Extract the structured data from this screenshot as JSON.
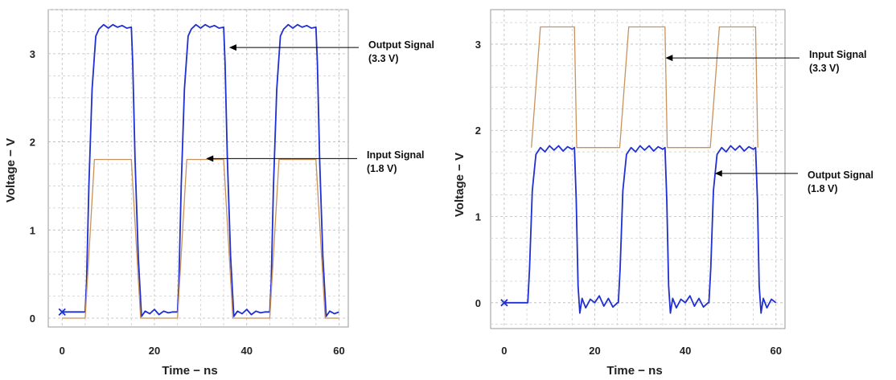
{
  "chart_data": [
    {
      "type": "line",
      "xlabel": "Time − ns",
      "ylabel": "Voltage − V",
      "xlim": [
        -3,
        62
      ],
      "ylim": [
        -0.1,
        3.5
      ],
      "xticks": [
        "0",
        "20",
        "40",
        "60"
      ],
      "xtick_values": [
        0,
        20,
        40,
        60
      ],
      "yticks": [
        "0",
        "1",
        "2",
        "3"
      ],
      "ytick_values": [
        0,
        1,
        2,
        3
      ],
      "grid": true,
      "series": [
        {
          "role": "output",
          "color": "#1f2fd0",
          "x": [
            0,
            5,
            5.3,
            5.8,
            6.5,
            7.3,
            8.0,
            9,
            10,
            11,
            12,
            13,
            14,
            15,
            15.3,
            15.8,
            16.5,
            17.2,
            18,
            19,
            20,
            21,
            22,
            23,
            24,
            25,
            25.3,
            25.8,
            26.5,
            27.3,
            28,
            29,
            30,
            31,
            32,
            33,
            34,
            35,
            35.3,
            35.8,
            36.5,
            37.2,
            38,
            39,
            40,
            41,
            42,
            43,
            44,
            45,
            45.3,
            45.8,
            46.5,
            47.3,
            48,
            49,
            50,
            51,
            52,
            53,
            54,
            55,
            55.3,
            55.8,
            56.5,
            57.2,
            58,
            59,
            60
          ],
          "y": [
            0.07,
            0.07,
            0.4,
            1.5,
            2.6,
            3.2,
            3.28,
            3.33,
            3.29,
            3.33,
            3.3,
            3.32,
            3.29,
            3.3,
            2.9,
            1.8,
            0.7,
            0.02,
            0.08,
            0.05,
            0.1,
            0.04,
            0.08,
            0.06,
            0.07,
            0.07,
            0.4,
            1.5,
            2.6,
            3.2,
            3.28,
            3.33,
            3.29,
            3.33,
            3.3,
            3.32,
            3.29,
            3.3,
            2.9,
            1.8,
            0.7,
            0.02,
            0.08,
            0.05,
            0.1,
            0.04,
            0.08,
            0.06,
            0.07,
            0.07,
            0.4,
            1.5,
            2.6,
            3.2,
            3.28,
            3.33,
            3.29,
            3.33,
            3.3,
            3.32,
            3.29,
            3.3,
            2.9,
            1.8,
            0.7,
            0.02,
            0.08,
            0.05,
            0.07
          ]
        },
        {
          "role": "input",
          "color": "#c9925a",
          "x": [
            0,
            5,
            7,
            15,
            17,
            25,
            27,
            35,
            37,
            45,
            47,
            55,
            57,
            60
          ],
          "y": [
            0,
            0,
            1.8,
            1.8,
            0,
            0,
            1.8,
            1.8,
            0,
            0,
            1.8,
            1.8,
            0,
            0
          ]
        }
      ],
      "annotations": [
        {
          "line1": "Output Signal",
          "line2": "(3.3 V)",
          "x": 36.2,
          "y": 3.07
        },
        {
          "line1": "Input Signal",
          "line2": "(1.8 V)",
          "x": 31.2,
          "y": 1.81
        }
      ]
    },
    {
      "type": "line",
      "xlabel": "Time − ns",
      "ylabel": "Voltage − V",
      "xlim": [
        -3,
        62
      ],
      "ylim": [
        -0.3,
        3.4
      ],
      "xticks": [
        "0",
        "20",
        "40",
        "60"
      ],
      "xtick_values": [
        0,
        20,
        40,
        60
      ],
      "yticks": [
        "0",
        "1",
        "2",
        "3"
      ],
      "ytick_values": [
        0,
        1,
        2,
        3
      ],
      "grid": true,
      "series": [
        {
          "role": "input",
          "color": "#c9925a",
          "x": [
            6,
            8,
            15.5,
            16,
            25.5,
            27.5,
            35.5,
            36,
            45.5,
            47.5,
            55.5,
            56
          ],
          "y": [
            1.8,
            3.2,
            3.2,
            1.8,
            1.8,
            3.2,
            3.2,
            1.8,
            1.8,
            3.2,
            3.2,
            1.8
          ]
        },
        {
          "role": "output",
          "color": "#1f2fd0",
          "x": [
            0,
            5.2,
            5.6,
            6.2,
            7,
            8,
            9,
            10,
            11,
            12,
            13,
            14,
            15,
            15.5,
            15.9,
            16.3,
            16.7,
            17.2,
            18,
            19,
            20,
            21,
            22,
            23,
            24,
            25,
            25.2,
            25.6,
            26.2,
            27,
            28,
            29,
            30,
            31,
            32,
            33,
            34,
            35,
            35.5,
            35.9,
            36.3,
            36.7,
            37.2,
            38,
            39,
            40,
            41,
            42,
            43,
            44,
            45,
            45.2,
            45.6,
            46.2,
            47,
            48,
            49,
            50,
            51,
            52,
            53,
            54,
            55,
            55.5,
            55.9,
            56.3,
            56.7,
            57.2,
            58,
            59,
            60
          ],
          "y": [
            0,
            0,
            0.4,
            1.3,
            1.72,
            1.8,
            1.75,
            1.82,
            1.77,
            1.82,
            1.76,
            1.81,
            1.78,
            1.8,
            1.2,
            0.2,
            -0.12,
            0.05,
            -0.06,
            0.04,
            0.0,
            0.08,
            -0.04,
            0.05,
            -0.05,
            0.0,
            0.0,
            0.4,
            1.3,
            1.72,
            1.8,
            1.75,
            1.82,
            1.77,
            1.82,
            1.76,
            1.81,
            1.78,
            1.8,
            1.2,
            0.2,
            -0.12,
            0.05,
            -0.06,
            0.04,
            0.0,
            0.08,
            -0.04,
            0.05,
            -0.05,
            0.0,
            0.0,
            0.4,
            1.3,
            1.72,
            1.8,
            1.75,
            1.82,
            1.77,
            1.82,
            1.76,
            1.81,
            1.78,
            1.8,
            1.2,
            0.2,
            -0.12,
            0.05,
            -0.06,
            0.04,
            0.0
          ]
        }
      ],
      "annotations": [
        {
          "line1": "Input Signal",
          "line2": "(3.3 V)",
          "x": 35.6,
          "y": 2.84
        },
        {
          "line1": "Output Signal",
          "line2": "(1.8 V)",
          "x": 46.5,
          "y": 1.5
        }
      ]
    }
  ]
}
